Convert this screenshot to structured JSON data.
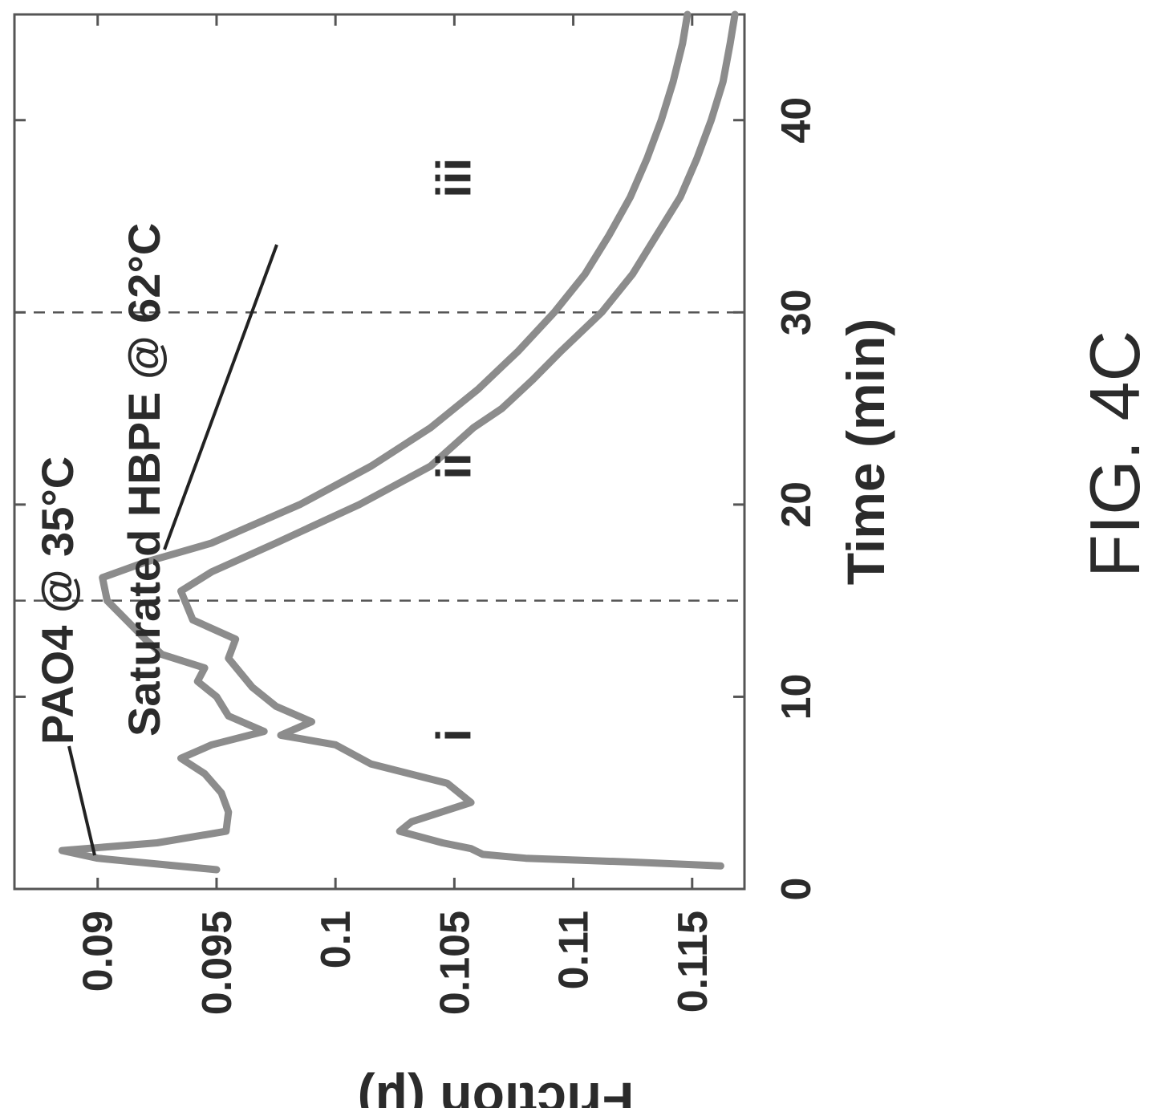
{
  "figure_label": "FIG. 4C",
  "chart_data": {
    "type": "line",
    "xlabel": "Time (min)",
    "ylabel": "Friction (μ)",
    "xlim": [
      0,
      45.5
    ],
    "ylim": [
      0.0865,
      0.1172
    ],
    "x_ticks": [
      0,
      10,
      20,
      30,
      40
    ],
    "x_tick_labels": [
      "0",
      "10",
      "20",
      "30",
      "40"
    ],
    "y_ticks": [
      0.09,
      0.095,
      0.1,
      0.105,
      0.11,
      0.115
    ],
    "y_tick_labels": [
      "0.09",
      "0.095",
      "0.1",
      "0.105",
      "0.11",
      "0.115"
    ],
    "grid": false,
    "dashed_vertical_lines": [
      15,
      30
    ],
    "region_labels": [
      {
        "text": "i",
        "x": 8,
        "y": 0.105
      },
      {
        "text": "ii",
        "x": 22,
        "y": 0.105
      },
      {
        "text": "iii",
        "x": 37,
        "y": 0.105
      }
    ],
    "series": [
      {
        "name": "PAO4 @ 35°C",
        "color": "#8c8c8c",
        "x": [
          1.2,
          1.4,
          1.6,
          1.8,
          2.1,
          2.4,
          3.0,
          3.5,
          4.5,
          5.5,
          6.5,
          7.5,
          8.0,
          8.7,
          9.5,
          10.5,
          12,
          13,
          14,
          15.5,
          16.5,
          18,
          20,
          22,
          24,
          25,
          26.5,
          28,
          30,
          32,
          34,
          36,
          38,
          40,
          42,
          44,
          45.5
        ],
        "y": [
          0.1162,
          0.1125,
          0.108,
          0.1062,
          0.1057,
          0.1045,
          0.1027,
          0.1032,
          0.1057,
          0.1047,
          0.1015,
          0.1,
          0.0977,
          0.099,
          0.0975,
          0.0965,
          0.0955,
          0.0958,
          0.094,
          0.0935,
          0.0948,
          0.0975,
          0.101,
          0.104,
          0.1058,
          0.107,
          0.1083,
          0.1095,
          0.1112,
          0.1125,
          0.1135,
          0.1145,
          0.1152,
          0.1158,
          0.1163,
          0.1166,
          0.1168
        ]
      },
      {
        "name": "Saturated HBPE @ 62°C",
        "color": "#8c8c8c",
        "x": [
          1.0,
          1.6,
          2.0,
          2.4,
          3.0,
          4.0,
          5.0,
          6.0,
          6.8,
          7.5,
          8.2,
          9.0,
          10.0,
          10.8,
          11.5,
          12.2,
          13,
          14,
          15,
          16.2,
          17,
          18,
          20,
          22,
          24,
          26,
          28,
          30,
          32,
          34,
          36,
          38,
          40,
          42,
          44,
          45.5
        ],
        "y": [
          0.095,
          0.09,
          0.0885,
          0.0925,
          0.0954,
          0.0955,
          0.0952,
          0.0945,
          0.0935,
          0.0948,
          0.097,
          0.0955,
          0.095,
          0.0942,
          0.0945,
          0.0927,
          0.092,
          0.0912,
          0.0904,
          0.0902,
          0.092,
          0.0948,
          0.0985,
          0.1015,
          0.104,
          0.106,
          0.1077,
          0.1092,
          0.1105,
          0.1115,
          0.1124,
          0.1131,
          0.1137,
          0.1142,
          0.1146,
          0.1148
        ]
      }
    ]
  }
}
